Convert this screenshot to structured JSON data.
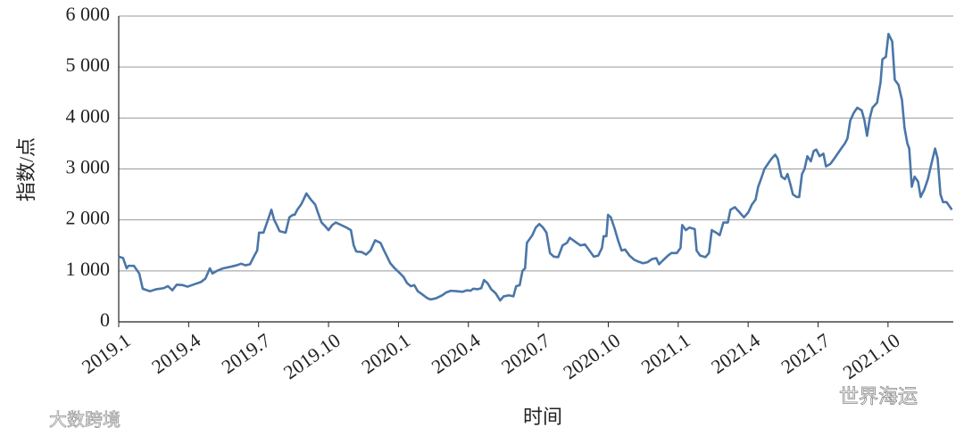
{
  "chart_data": {
    "type": "line",
    "y_label": "指数/点",
    "x_label": "时间",
    "watermarks": [
      "大数跨境",
      "世界海运"
    ],
    "xlim": [
      0,
      35.8
    ],
    "xticks": [
      {
        "value": 0,
        "label": "2019.1"
      },
      {
        "value": 3,
        "label": "2019.4"
      },
      {
        "value": 6,
        "label": "2019.7"
      },
      {
        "value": 9,
        "label": "2019.10"
      },
      {
        "value": 12,
        "label": "2020.1"
      },
      {
        "value": 15,
        "label": "2020.4"
      },
      {
        "value": 18,
        "label": "2020.7"
      },
      {
        "value": 21,
        "label": "2020.10"
      },
      {
        "value": 24,
        "label": "2021.1"
      },
      {
        "value": 27,
        "label": "2021.4"
      },
      {
        "value": 30,
        "label": "2021.7"
      },
      {
        "value": 33,
        "label": "2021.10"
      }
    ],
    "ylim": [
      0,
      6000
    ],
    "yticks": [
      0,
      {
        "value": 1000,
        "label": "1 000"
      },
      {
        "value": 2000,
        "label": "2 000"
      },
      {
        "value": 3000,
        "label": "3 000"
      },
      {
        "value": 4000,
        "label": "4 000"
      },
      {
        "value": 5000,
        "label": "5 000"
      },
      {
        "value": 6000,
        "label": "6 000"
      }
    ],
    "grid": true,
    "color": "#4a76a8",
    "x": [
      0,
      0.19,
      0.34,
      0.42,
      0.65,
      0.88,
      1.03,
      1.34,
      1.61,
      1.92,
      2.11,
      2.3,
      2.49,
      2.76,
      2.95,
      3.26,
      3.52,
      3.72,
      3.91,
      4.02,
      4.21,
      4.48,
      4.79,
      5.06,
      5.25,
      5.44,
      5.63,
      5.82,
      5.94,
      6.02,
      6.21,
      6.4,
      6.55,
      6.67,
      6.78,
      6.9,
      7.16,
      7.32,
      7.47,
      7.55,
      7.66,
      7.82,
      7.93,
      8.05,
      8.24,
      8.43,
      8.54,
      8.7,
      8.85,
      9.0,
      9.16,
      9.31,
      9.54,
      9.77,
      9.96,
      10.08,
      10.19,
      10.42,
      10.61,
      10.8,
      11.0,
      11.23,
      11.38,
      11.49,
      11.65,
      11.84,
      12.07,
      12.22,
      12.37,
      12.53,
      12.68,
      12.83,
      12.99,
      13.22,
      13.37,
      13.6,
      13.87,
      14.06,
      14.25,
      14.52,
      14.75,
      14.94,
      15.09,
      15.21,
      15.4,
      15.55,
      15.67,
      15.82,
      15.98,
      16.17,
      16.36,
      16.51,
      16.74,
      16.93,
      17.05,
      17.2,
      17.32,
      17.43,
      17.51,
      17.74,
      17.89,
      18.04,
      18.2,
      18.35,
      18.5,
      18.66,
      18.85,
      19.04,
      19.23,
      19.35,
      19.5,
      19.65,
      19.81,
      20.0,
      20.19,
      20.38,
      20.57,
      20.73,
      20.8,
      20.92,
      20.99,
      21.11,
      21.26,
      21.42,
      21.57,
      21.72,
      21.91,
      22.11,
      22.3,
      22.49,
      22.68,
      22.87,
      23.06,
      23.18,
      23.33,
      23.56,
      23.71,
      23.94,
      24.1,
      24.17,
      24.33,
      24.48,
      24.71,
      24.79,
      24.94,
      25.17,
      25.32,
      25.44,
      25.63,
      25.78,
      25.94,
      26.13,
      26.24,
      26.43,
      26.63,
      26.82,
      27.01,
      27.16,
      27.32,
      27.43,
      27.55,
      27.7,
      27.85,
      28.0,
      28.16,
      28.27,
      28.43,
      28.58,
      28.69,
      28.81,
      28.92,
      29.08,
      29.19,
      29.31,
      29.42,
      29.54,
      29.69,
      29.81,
      29.92,
      30.07,
      30.23,
      30.34,
      30.53,
      30.69,
      30.84,
      30.99,
      31.15,
      31.26,
      31.38,
      31.53,
      31.68,
      31.87,
      31.99,
      32.1,
      32.22,
      32.33,
      32.53,
      32.68,
      32.76,
      32.91,
      33.02,
      33.18,
      33.29,
      33.45,
      33.6,
      33.71,
      33.83,
      33.91,
      34.02,
      34.14,
      34.29,
      34.4,
      34.56,
      34.71,
      34.86,
      35.02,
      35.13,
      35.25,
      35.36,
      35.51,
      35.74
    ],
    "values": [
      1280,
      1250,
      1050,
      1100,
      1100,
      950,
      650,
      600,
      640,
      660,
      700,
      620,
      730,
      720,
      690,
      740,
      780,
      850,
      1050,
      950,
      1000,
      1050,
      1080,
      1110,
      1140,
      1110,
      1130,
      1300,
      1400,
      1750,
      1750,
      2000,
      2200,
      2000,
      1900,
      1780,
      1750,
      2050,
      2100,
      2100,
      2200,
      2300,
      2400,
      2520,
      2400,
      2300,
      2150,
      1950,
      1880,
      1800,
      1900,
      1950,
      1900,
      1850,
      1800,
      1500,
      1380,
      1370,
      1320,
      1400,
      1600,
      1550,
      1400,
      1300,
      1150,
      1050,
      950,
      880,
      760,
      700,
      720,
      600,
      550,
      470,
      440,
      460,
      520,
      580,
      610,
      600,
      590,
      620,
      610,
      650,
      640,
      660,
      820,
      760,
      640,
      560,
      420,
      500,
      520,
      500,
      700,
      720,
      1000,
      1050,
      1550,
      1700,
      1850,
      1920,
      1850,
      1750,
      1350,
      1280,
      1270,
      1500,
      1550,
      1650,
      1600,
      1550,
      1500,
      1520,
      1400,
      1280,
      1300,
      1450,
      1680,
      1680,
      2100,
      2050,
      1850,
      1600,
      1400,
      1420,
      1300,
      1220,
      1180,
      1150,
      1170,
      1230,
      1250,
      1130,
      1200,
      1300,
      1350,
      1350,
      1450,
      1900,
      1800,
      1850,
      1820,
      1400,
      1300,
      1270,
      1350,
      1800,
      1750,
      1700,
      1950,
      1950,
      2200,
      2250,
      2150,
      2050,
      2150,
      2300,
      2400,
      2650,
      2800,
      3000,
      3100,
      3200,
      3280,
      3200,
      2850,
      2800,
      2900,
      2700,
      2500,
      2450,
      2450,
      2900,
      3000,
      3250,
      3150,
      3350,
      3380,
      3250,
      3300,
      3050,
      3100,
      3200,
      3300,
      3400,
      3500,
      3600,
      3950,
      4100,
      4200,
      4150,
      3950,
      3650,
      4000,
      4200,
      4300,
      4700,
      5150,
      5200,
      5650,
      5500,
      4750,
      4650,
      4350,
      3800,
      3500,
      3400,
      2650,
      2850,
      2750,
      2450,
      2600,
      2800,
      3100,
      3400,
      3200,
      2500,
      2350,
      2350,
      2200
    ]
  }
}
